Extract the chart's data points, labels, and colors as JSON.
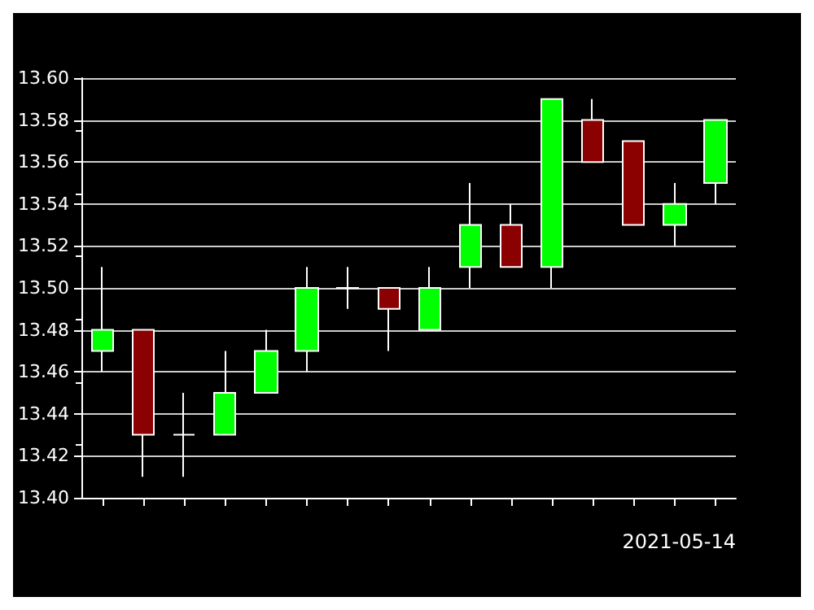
{
  "chart_data": {
    "type": "candlestick",
    "categories": [
      null,
      null,
      null,
      null,
      null,
      null,
      null,
      null,
      null,
      null,
      null,
      null,
      null,
      null,
      null,
      null
    ],
    "ohlc": [
      [
        13.47,
        13.51,
        13.46,
        13.48
      ],
      [
        13.48,
        13.48,
        13.41,
        13.43
      ],
      [
        13.43,
        13.45,
        13.41,
        13.43
      ],
      [
        13.43,
        13.47,
        13.43,
        13.45
      ],
      [
        13.45,
        13.48,
        13.45,
        13.47
      ],
      [
        13.47,
        13.51,
        13.46,
        13.5
      ],
      [
        13.5,
        13.51,
        13.49,
        13.5
      ],
      [
        13.5,
        13.5,
        13.47,
        13.49
      ],
      [
        13.48,
        13.51,
        13.48,
        13.5
      ],
      [
        13.51,
        13.55,
        13.5,
        13.53
      ],
      [
        13.53,
        13.54,
        13.51,
        13.51
      ],
      [
        13.51,
        13.59,
        13.5,
        13.59
      ],
      [
        13.58,
        13.59,
        13.56,
        13.56
      ],
      [
        13.57,
        13.57,
        13.53,
        13.53
      ],
      [
        13.53,
        13.55,
        13.52,
        13.54
      ],
      [
        13.55,
        13.58,
        13.54,
        13.58
      ]
    ],
    "colors": [
      "#00ff00",
      "#8b0000",
      "#ffffff",
      "#00ff00",
      "#00ff00",
      "#00ff00",
      "#ffffff",
      "#8b0000",
      "#00ff00",
      "#00ff00",
      "#8b0000",
      "#00ff00",
      "#8b0000",
      "#8b0000",
      "#00ff00",
      "#00ff00"
    ],
    "ylim": [
      13.4,
      13.6
    ],
    "yticks": [
      {
        "value": 13.4,
        "label": "13.40"
      },
      {
        "value": 13.42,
        "label": "13.42"
      },
      {
        "value": 13.44,
        "label": "13.44"
      },
      {
        "value": 13.46,
        "label": "13.46"
      },
      {
        "value": 13.48,
        "label": "13.48"
      },
      {
        "value": 13.5,
        "label": "13.50"
      },
      {
        "value": 13.52,
        "label": "13.52"
      },
      {
        "value": 13.54,
        "label": "13.54"
      },
      {
        "value": 13.56,
        "label": "13.56"
      },
      {
        "value": 13.58,
        "label": "13.58"
      },
      {
        "value": 13.6,
        "label": "13.60"
      }
    ],
    "grid": "y",
    "tick_labels": "y",
    "annotations": [
      "2021-05-14"
    ]
  }
}
